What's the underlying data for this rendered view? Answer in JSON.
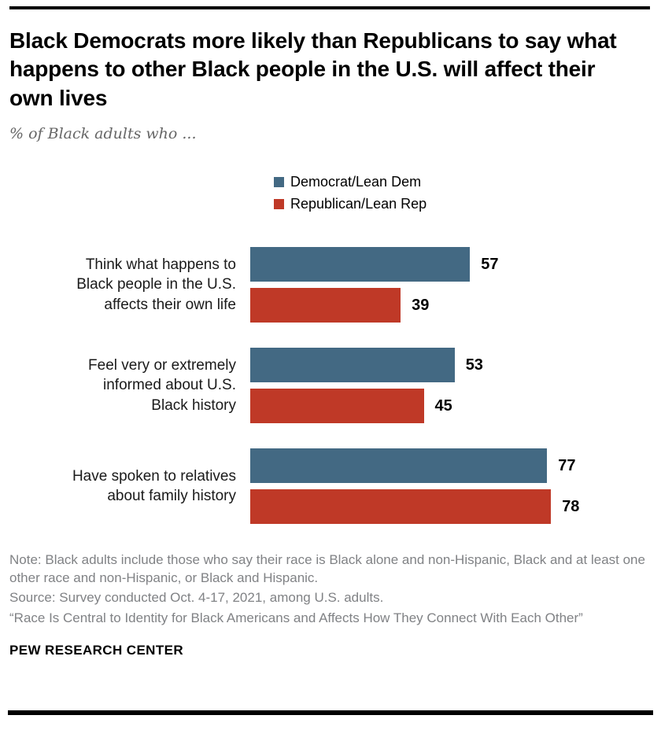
{
  "header": {
    "title": "Black Democrats more likely than Republicans to say what happens to other Black people in the U.S. will affect their own lives",
    "subtitle": "% of Black adults who ..."
  },
  "chart_data": {
    "type": "bar",
    "orientation": "horizontal",
    "title": "Black Democrats more likely than Republicans to say what happens to other Black people in the U.S. will affect their own lives",
    "subtitle": "% of Black adults who ...",
    "categories": [
      "Think what happens to\nBlack people in the U.S.\naffects their own life",
      "Feel very or extremely\ninformed about U.S.\nBlack history",
      "Have spoken to relatives\nabout family history"
    ],
    "series": [
      {
        "name": "Democrat/Lean Dem",
        "color": "#436983",
        "values": [
          57,
          53,
          77
        ]
      },
      {
        "name": "Republican/Lean Rep",
        "color": "#bf3927",
        "values": [
          39,
          45,
          78
        ]
      }
    ],
    "xlim": [
      0,
      80
    ],
    "grid": false,
    "legend_position": "top",
    "value_labels": true
  },
  "footer": {
    "note": "Note: Black adults include those who say their race is Black alone and non-Hispanic, Black and at least one other race and non-Hispanic, or Black and Hispanic.",
    "source": "Source: Survey conducted Oct. 4-17, 2021, among U.S. adults.",
    "report": "“Race Is Central to Identity for Black Americans and Affects How They Connect With Each Other”",
    "brand": "PEW RESEARCH CENTER"
  }
}
